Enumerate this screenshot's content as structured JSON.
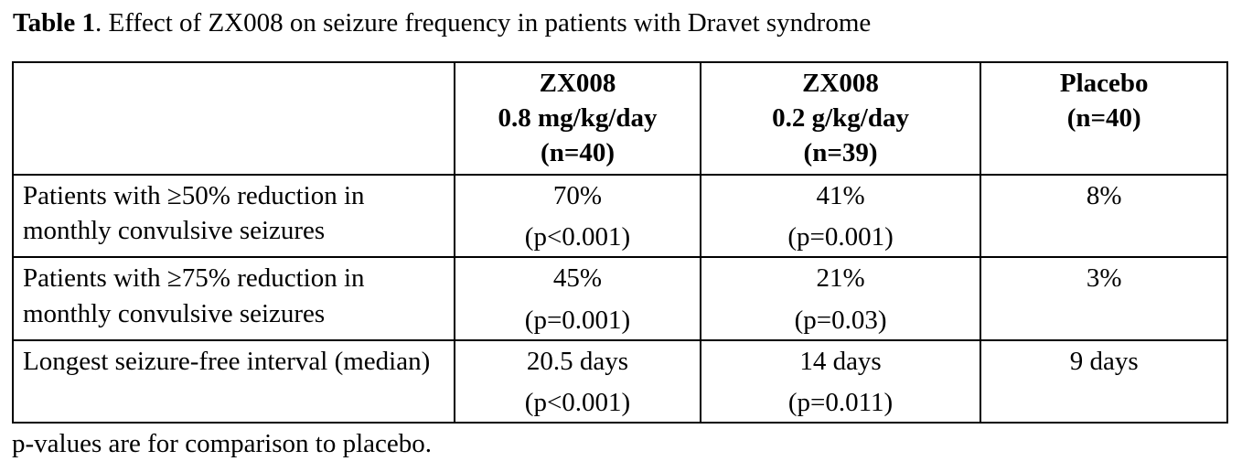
{
  "title": {
    "label": "Table 1",
    "rest": ". Effect of ZX008 on seizure frequency in patients with Dravet syndrome"
  },
  "table": {
    "header": {
      "col1": [
        "ZX008",
        "0.8 mg/kg/day",
        "(n=40)"
      ],
      "col2": [
        "ZX008",
        "0.2 g/kg/day",
        "(n=39)"
      ],
      "col3": [
        "Placebo",
        "(n=40)"
      ]
    },
    "rows": [
      {
        "label": "Patients with ≥50% reduction in monthly convulsive seizures",
        "cells": [
          {
            "value": "70%",
            "p": "(p<0.001)"
          },
          {
            "value": "41%",
            "p": "(p=0.001)"
          },
          {
            "value": "8%",
            "p": ""
          }
        ]
      },
      {
        "label": "Patients with ≥75% reduction in monthly convulsive seizures",
        "cells": [
          {
            "value": "45%",
            "p": "(p=0.001)"
          },
          {
            "value": "21%",
            "p": "(p=0.03)"
          },
          {
            "value": "3%",
            "p": ""
          }
        ]
      },
      {
        "label": "Longest seizure-free interval (median)",
        "cells": [
          {
            "value": "20.5 days",
            "p": "(p<0.001)"
          },
          {
            "value": "14 days",
            "p": "(p=0.011)"
          },
          {
            "value": "9 days",
            "p": ""
          }
        ]
      }
    ]
  },
  "footnote": "p-values are for comparison to placebo.",
  "colors": {
    "text": "#000000",
    "background": "#ffffff",
    "border": "#000000"
  },
  "chart_data": {
    "type": "table",
    "title": "Table 1. Effect of ZX008 on seizure frequency in patients with Dravet syndrome",
    "columns": [
      "",
      "ZX008 0.8 mg/kg/day (n=40)",
      "ZX008 0.2 g/kg/day (n=39)",
      "Placebo (n=40)"
    ],
    "rows": [
      [
        "Patients with ≥50% reduction in monthly convulsive seizures",
        "70% (p<0.001)",
        "41% (p=0.001)",
        "8%"
      ],
      [
        "Patients with ≥75% reduction in monthly convulsive seizures",
        "45% (p=0.001)",
        "21% (p=0.03)",
        "3%"
      ],
      [
        "Longest seizure-free interval (median)",
        "20.5 days (p<0.001)",
        "14 days (p=0.011)",
        "9 days"
      ]
    ],
    "footnote": "p-values are for comparison to placebo."
  }
}
